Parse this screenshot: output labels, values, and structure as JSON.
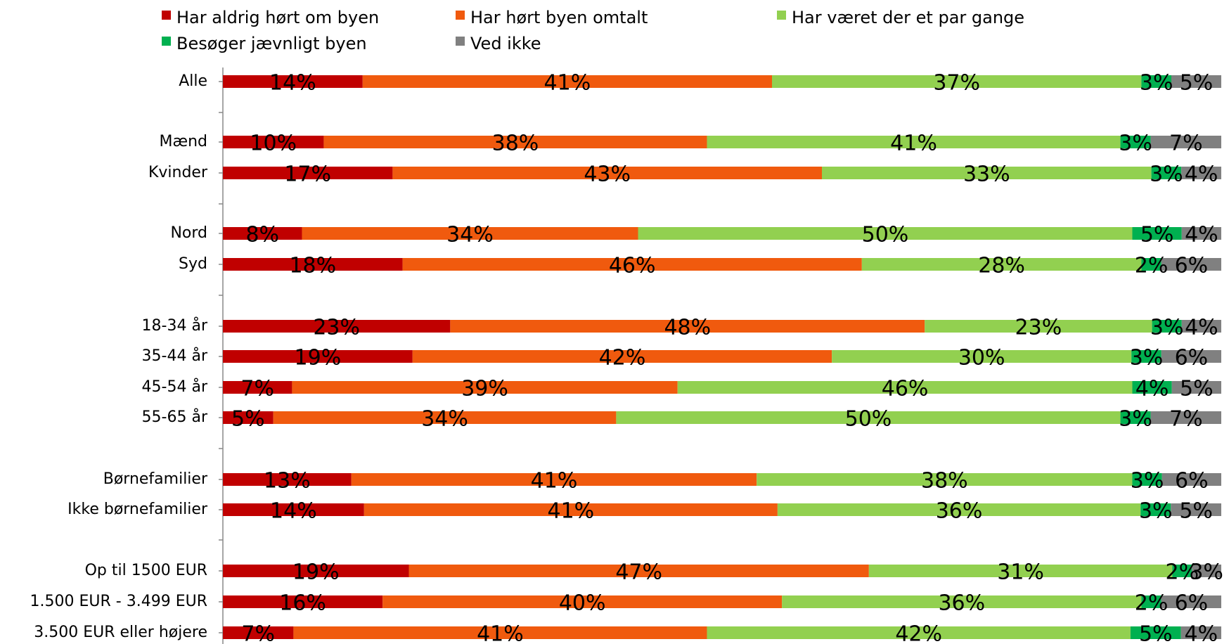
{
  "chart_data": {
    "type": "bar",
    "orientation": "horizontal",
    "stacked": true,
    "percent_stacked": true,
    "legend_position": "top-left",
    "grid": false,
    "xlim": [
      0,
      100
    ],
    "categories": [
      "Alle",
      "Mænd",
      "Kvinder",
      "Nord",
      "Syd",
      "18-34 år",
      "35-44 år",
      "45-54 år",
      "55-65 år",
      "Børnefamilier",
      "Ikke børnefamilier",
      "Op til 1500 EUR",
      "1.500 EUR - 3.499 EUR",
      "3.500 EUR eller højere"
    ],
    "series": [
      {
        "name": "Har aldrig hørt om byen",
        "color": "#c00000",
        "values": [
          14,
          10,
          17,
          8,
          18,
          23,
          19,
          7,
          5,
          13,
          14,
          19,
          16,
          7
        ]
      },
      {
        "name": "Har hørt byen omtalt",
        "color": "#f05a0e",
        "values": [
          41,
          38,
          43,
          34,
          46,
          48,
          42,
          39,
          34,
          41,
          41,
          47,
          40,
          41
        ]
      },
      {
        "name": "Har været der et par gange",
        "color": "#92d050",
        "values": [
          37,
          41,
          33,
          50,
          28,
          23,
          30,
          46,
          50,
          38,
          36,
          31,
          36,
          42
        ]
      },
      {
        "name": "Besøger jævnligt byen",
        "color": "#00b050",
        "values": [
          3,
          3,
          3,
          5,
          2,
          3,
          3,
          4,
          3,
          3,
          3,
          2,
          2,
          5
        ]
      },
      {
        "name": "Ved ikke",
        "color": "#808080",
        "values": [
          5,
          7,
          4,
          4,
          6,
          4,
          6,
          5,
          7,
          6,
          5,
          3,
          6,
          4
        ]
      }
    ]
  }
}
